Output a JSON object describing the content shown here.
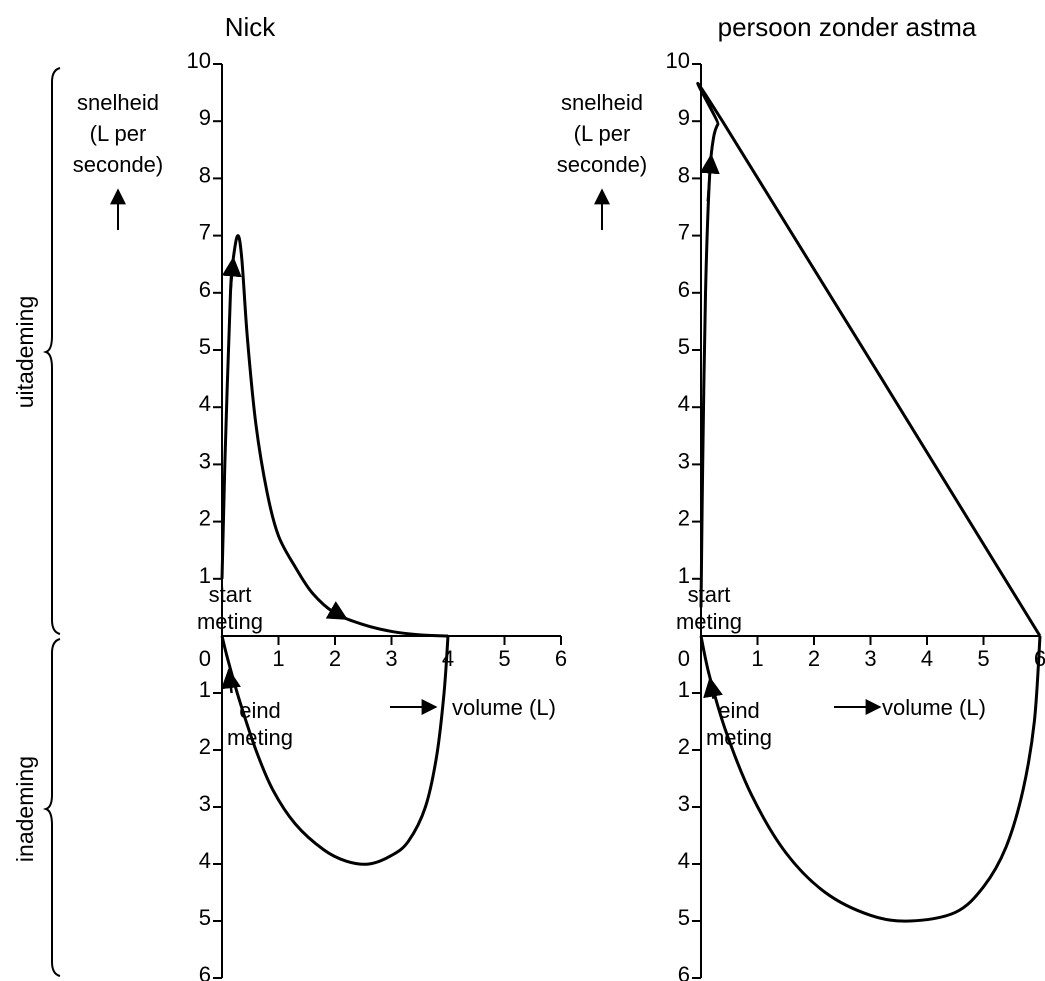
{
  "side_labels": {
    "exhale": "uitademing",
    "inhale": "inademing"
  },
  "chart_data": [
    {
      "type": "line",
      "title": "Nick",
      "ylabel_lines": [
        "snelheid",
        "(L per",
        "seconde)"
      ],
      "xlabel": "volume (L)",
      "start_label": [
        "start",
        "meting"
      ],
      "end_label": [
        "eind",
        "meting"
      ],
      "x_ticks": [
        "1",
        "2",
        "3",
        "4",
        "5",
        "6"
      ],
      "y_up_ticks": [
        "1",
        "2",
        "3",
        "4",
        "5",
        "6",
        "7",
        "8",
        "9",
        "10"
      ],
      "y_down_ticks": [
        "1",
        "2",
        "3",
        "4",
        "5",
        "6"
      ],
      "origin_label": "0",
      "xlim": [
        0,
        6
      ],
      "ylim_exhale": [
        0,
        10
      ],
      "ylim_inhale": [
        0,
        6
      ],
      "series": [
        {
          "segment": "uitademing",
          "points": [
            [
              0,
              1
            ],
            [
              0.05,
              3
            ],
            [
              0.15,
              6
            ],
            [
              0.2,
              6.6
            ],
            [
              0.28,
              7.0
            ],
            [
              0.35,
              6.6
            ],
            [
              0.45,
              5.2
            ],
            [
              0.6,
              3.7
            ],
            [
              0.8,
              2.5
            ],
            [
              1.0,
              1.75
            ],
            [
              1.3,
              1.2
            ],
            [
              1.6,
              0.75
            ],
            [
              2.0,
              0.4
            ],
            [
              2.5,
              0.2
            ],
            [
              3.0,
              0.08
            ],
            [
              3.5,
              0.02
            ],
            [
              4.0,
              0
            ]
          ]
        },
        {
          "segment": "inademing",
          "points": [
            [
              4.0,
              0
            ],
            [
              3.93,
              1.0
            ],
            [
              3.8,
              2.1
            ],
            [
              3.6,
              3.0
            ],
            [
              3.3,
              3.6
            ],
            [
              3.0,
              3.85
            ],
            [
              2.6,
              4.0
            ],
            [
              2.2,
              3.95
            ],
            [
              1.8,
              3.75
            ],
            [
              1.3,
              3.3
            ],
            [
              0.9,
              2.7
            ],
            [
              0.6,
              2.0
            ],
            [
              0.3,
              1.1
            ],
            [
              0.1,
              0.4
            ],
            [
              0,
              0
            ]
          ]
        }
      ]
    },
    {
      "type": "line",
      "title": "persoon zonder astma",
      "ylabel_lines": [
        "snelheid",
        "(L per",
        "seconde)"
      ],
      "xlabel": "volume (L)",
      "start_label": [
        "start",
        "meting"
      ],
      "end_label": [
        "eind",
        "meting"
      ],
      "x_ticks": [
        "1",
        "2",
        "3",
        "4",
        "5",
        "6"
      ],
      "y_up_ticks": [
        "1",
        "2",
        "3",
        "4",
        "5",
        "6",
        "7",
        "8",
        "9",
        "10"
      ],
      "y_down_ticks": [
        "1",
        "2",
        "3",
        "4",
        "5",
        "6"
      ],
      "origin_label": "0",
      "xlim": [
        0,
        6
      ],
      "ylim_exhale": [
        0,
        10
      ],
      "ylim_inhale": [
        0,
        6
      ],
      "series": [
        {
          "segment": "uitademing",
          "points": [
            [
              0,
              0.5
            ],
            [
              0.03,
              3
            ],
            [
              0.08,
              6
            ],
            [
              0.15,
              8.0
            ],
            [
              0.22,
              8.7
            ],
            [
              0.3,
              8.95
            ],
            [
              0.38,
              9.0
            ],
            [
              6.0,
              0
            ]
          ]
        },
        {
          "segment": "inademing",
          "points": [
            [
              6.0,
              0
            ],
            [
              5.9,
              1.5
            ],
            [
              5.7,
              2.7
            ],
            [
              5.4,
              3.7
            ],
            [
              5.0,
              4.4
            ],
            [
              4.5,
              4.85
            ],
            [
              3.7,
              5.0
            ],
            [
              3.0,
              4.9
            ],
            [
              2.2,
              4.5
            ],
            [
              1.5,
              3.8
            ],
            [
              0.9,
              2.8
            ],
            [
              0.45,
              1.7
            ],
            [
              0.15,
              0.7
            ],
            [
              0,
              0
            ]
          ]
        }
      ]
    }
  ]
}
